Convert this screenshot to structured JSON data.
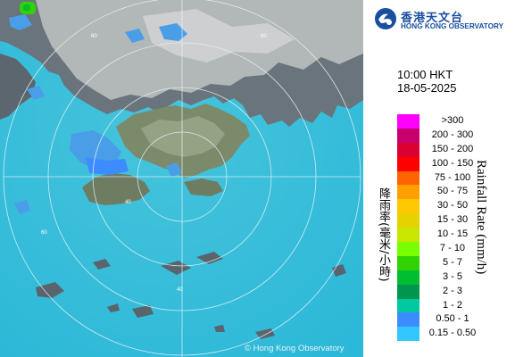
{
  "org": {
    "name_cn": "香港天文台",
    "name_en": "HONG KONG OBSERVATORY"
  },
  "time": "10:00 HKT",
  "date": "18-05-2025",
  "copyright": "© Hong Kong Observatory",
  "legend": {
    "title_cn": "降雨率(毫米/小時)",
    "title_en": "Rainfall Rate (mm/h)",
    "levels": [
      {
        "label": ">300",
        "color": "#ff00ff"
      },
      {
        "label": "200 - 300",
        "color": "#c8006e"
      },
      {
        "label": "150 - 200",
        "color": "#dc0032"
      },
      {
        "label": "100 - 150",
        "color": "#ff0000"
      },
      {
        "label": "75 - 100",
        "color": "#ff6400"
      },
      {
        "label": "50 - 75",
        "color": "#ffa000"
      },
      {
        "label": "30 - 50",
        "color": "#ffc800"
      },
      {
        "label": "15 - 30",
        "color": "#e6d200"
      },
      {
        "label": "10 - 15",
        "color": "#c8e600"
      },
      {
        "label": "7 - 10",
        "color": "#78ff00"
      },
      {
        "label": "5 - 7",
        "color": "#32d200"
      },
      {
        "label": "3 - 5",
        "color": "#00be32"
      },
      {
        "label": "2 - 3",
        "color": "#009650"
      },
      {
        "label": "1 - 2",
        "color": "#00c8a0"
      },
      {
        "label": "0.50 - 1",
        "color": "#3c8cff"
      },
      {
        "label": "0.15 - 0.50",
        "color": "#32c8ff"
      }
    ]
  },
  "range_ring_labels": [
    "60",
    "60",
    "40",
    "40",
    "60"
  ],
  "colors": {
    "sea": "#3cc0dc",
    "land_dark": "#4a5560",
    "land_light": "#b8bcbe",
    "rain_light": "#4a9ee8",
    "accent": "#1a4fa0"
  }
}
